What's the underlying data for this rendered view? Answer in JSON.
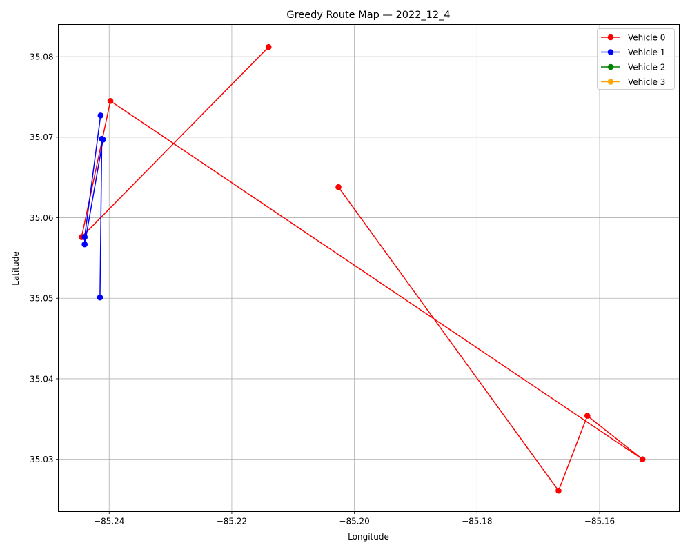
{
  "chart_data": {
    "type": "line",
    "title": "Greedy Route Map — 2022_12_4",
    "xlabel": "Longitude",
    "ylabel": "Latitude",
    "xlim": [
      -85.2483,
      -85.147
    ],
    "ylim": [
      35.0235,
      35.084
    ],
    "xticks": [
      -85.24,
      -85.22,
      -85.2,
      -85.18,
      -85.16
    ],
    "xtick_labels": [
      "−85.24",
      "−85.22",
      "−85.20",
      "−85.18",
      "−85.16"
    ],
    "yticks": [
      35.03,
      35.04,
      35.05,
      35.06,
      35.07,
      35.08
    ],
    "ytick_labels": [
      "35.03",
      "35.04",
      "35.05",
      "35.06",
      "35.07",
      "35.08"
    ],
    "grid": true,
    "legend_position": "top-right",
    "series": [
      {
        "name": "Vehicle 0",
        "color": "#ff0000",
        "points": [
          [
            -85.2026,
            35.0638
          ],
          [
            -85.1667,
            35.0261
          ],
          [
            -85.162,
            35.0354
          ],
          [
            -85.153,
            35.03
          ],
          [
            -85.2398,
            35.0745
          ],
          [
            -85.2445,
            35.0576
          ],
          [
            -85.214,
            35.0812
          ]
        ]
      },
      {
        "name": "Vehicle 1",
        "color": "#0000ff",
        "points": [
          [
            -85.2415,
            35.0501
          ],
          [
            -85.2412,
            35.0698
          ],
          [
            -85.241,
            35.0697
          ],
          [
            -85.244,
            35.0567
          ],
          [
            -85.244,
            35.0576
          ],
          [
            -85.2414,
            35.0727
          ]
        ]
      },
      {
        "name": "Vehicle 2",
        "color": "#008000",
        "points": []
      },
      {
        "name": "Vehicle 3",
        "color": "#ffa500",
        "points": []
      }
    ]
  }
}
